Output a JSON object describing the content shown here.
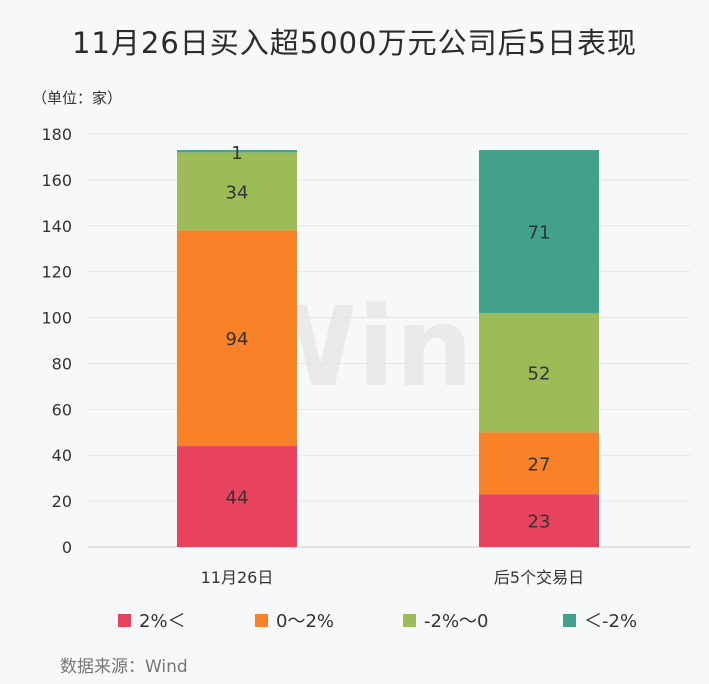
{
  "title": "11月26日买入超5000万元公司后5日表现",
  "unit_label": "（单位：家）",
  "source": "数据来源：Wind",
  "watermark": "Win.d",
  "chart_data": {
    "type": "bar",
    "stacked": true,
    "categories": [
      "11月26日",
      "后5个交易日"
    ],
    "series": [
      {
        "name": "2%＜",
        "color": "#e8435e",
        "values": [
          44,
          23
        ]
      },
      {
        "name": "0～2%",
        "color": "#f98228",
        "values": [
          94,
          27
        ]
      },
      {
        "name": "-2%～0",
        "color": "#9dbb56",
        "values": [
          34,
          52
        ]
      },
      {
        "name": "＜-2%",
        "color": "#43a08a",
        "values": [
          1,
          71
        ]
      }
    ],
    "ylim": [
      0,
      180
    ],
    "yticks": [
      0,
      20,
      40,
      60,
      80,
      100,
      120,
      140,
      160,
      180
    ],
    "xlabel": "",
    "ylabel": "",
    "grid": true,
    "legend": "bottom"
  }
}
